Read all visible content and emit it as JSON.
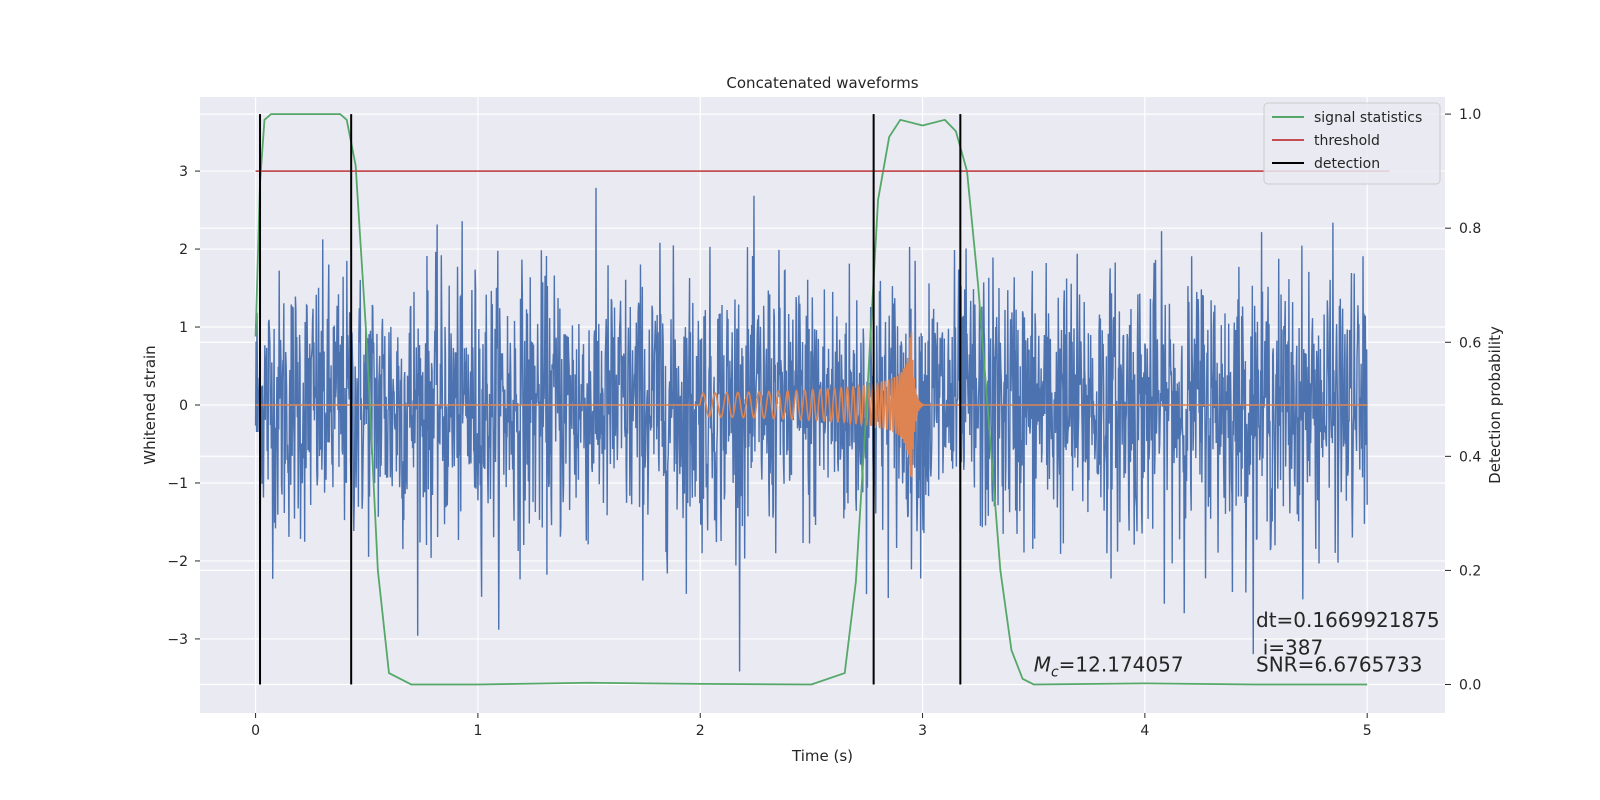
{
  "chart_data": {
    "type": "line",
    "title": "Concatenated waveforms",
    "xlabel": "Time (s)",
    "ylabel": "Whitened strain",
    "ylabel_right": "Detection probability",
    "xlim": [
      -0.25,
      5.35
    ],
    "ylim": [
      -3.95,
      3.95
    ],
    "ylim_right": [
      -0.05,
      1.03
    ],
    "xticks": [
      0,
      1,
      2,
      3,
      4,
      5
    ],
    "yticks": [
      -3,
      -2,
      -1,
      0,
      1,
      2,
      3
    ],
    "yticks_right": [
      0.0,
      0.2,
      0.4,
      0.6,
      0.8,
      1.0
    ],
    "xtick_labels": [
      "0",
      "1",
      "2",
      "3",
      "4",
      "5"
    ],
    "ytick_labels": [
      "−3",
      "−2",
      "−1",
      "0",
      "1",
      "2",
      "3"
    ],
    "ytick_right_labels": [
      "0.0",
      "0.2",
      "0.4",
      "0.6",
      "0.8",
      "1.0"
    ],
    "grid": true,
    "legend_position": "top-right",
    "series": [
      {
        "name": "",
        "axis": "left",
        "color": "#4c72b0",
        "kind": "noise",
        "x_range": [
          0,
          5
        ],
        "amplitude": 3.6
      },
      {
        "name": "",
        "axis": "left",
        "color": "#dd8452",
        "kind": "chirp",
        "x_range": [
          0,
          5
        ],
        "chirp_start": 2.0,
        "merger": 2.95,
        "peak": 1.05
      },
      {
        "name": "signal statistics",
        "axis": "right",
        "color": "#55a868",
        "x": [
          0.0,
          0.02,
          0.04,
          0.07,
          0.1,
          0.2,
          0.3,
          0.38,
          0.41,
          0.45,
          0.5,
          0.55,
          0.6,
          0.7,
          1.0,
          1.5,
          2.0,
          2.5,
          2.65,
          2.7,
          2.75,
          2.8,
          2.85,
          2.9,
          3.0,
          3.1,
          3.15,
          3.2,
          3.25,
          3.3,
          3.35,
          3.4,
          3.45,
          3.5,
          4.0,
          4.5,
          5.0
        ],
        "y": [
          0.61,
          0.88,
          0.99,
          1.0,
          1.0,
          1.0,
          1.0,
          1.0,
          0.99,
          0.91,
          0.6,
          0.2,
          0.02,
          0.0,
          0.0,
          0.003,
          0.001,
          0.0,
          0.02,
          0.18,
          0.5,
          0.85,
          0.96,
          0.99,
          0.98,
          0.99,
          0.97,
          0.9,
          0.7,
          0.45,
          0.2,
          0.06,
          0.01,
          0.0,
          0.002,
          0.0,
          0.0
        ]
      },
      {
        "name": "threshold",
        "axis": "right",
        "color": "#c44e52",
        "x": [
          0.0,
          5.1
        ],
        "y": [
          0.9,
          0.9
        ]
      },
      {
        "name": "detection",
        "axis": "right",
        "color": "#000000",
        "kind": "vlines",
        "x": [
          0.02,
          0.43,
          2.78,
          3.17
        ],
        "y_range": [
          0.0,
          1.0
        ]
      }
    ],
    "annotations": [
      {
        "text": "dt=0.1669921875",
        "x": 4.5,
        "y": -2.85
      },
      {
        "text": "i=387",
        "x": 4.53,
        "y": -3.2
      },
      {
        "text": "SNR=6.6765733",
        "x": 4.5,
        "y": -3.42
      },
      {
        "prefix_symbol": "M",
        "subscript": "c",
        "text": "=12.174057",
        "x": 3.5,
        "y": -3.42
      }
    ]
  },
  "colors": {
    "plot_background": "#eaeaf2",
    "grid": "#ffffff",
    "text": "#262626"
  }
}
